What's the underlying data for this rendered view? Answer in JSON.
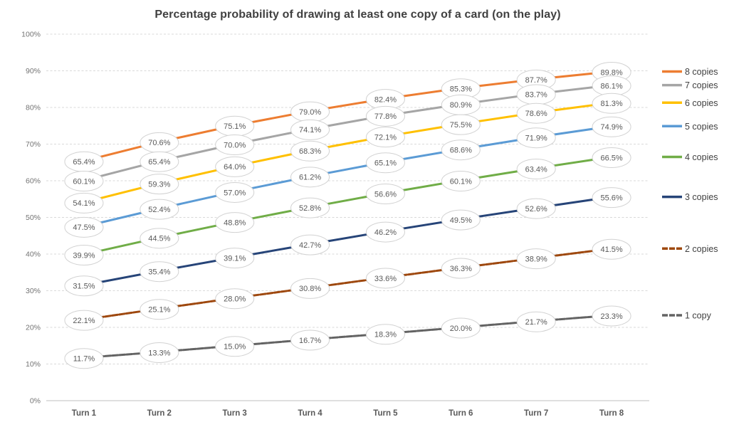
{
  "title": "Percentage probability of drawing at least one copy of a card (on the play)",
  "chart_data": {
    "type": "line",
    "title": "Percentage probability of drawing at least one copy of a card (on the play)",
    "categories": [
      "Turn 1",
      "Turn 2",
      "Turn 3",
      "Turn 4",
      "Turn 5",
      "Turn 6",
      "Turn 7",
      "Turn 8"
    ],
    "series": [
      {
        "name": "8 copies",
        "color": "#ED7D31",
        "line_style": "solid",
        "values": [
          65.4,
          70.6,
          75.1,
          79.0,
          82.4,
          85.3,
          87.7,
          89.8
        ]
      },
      {
        "name": "7 copies",
        "color": "#A5A5A5",
        "line_style": "solid",
        "values": [
          60.1,
          65.4,
          70.0,
          74.1,
          77.8,
          80.9,
          83.7,
          86.1
        ]
      },
      {
        "name": "6 copies",
        "color": "#FFC000",
        "line_style": "solid",
        "values": [
          54.1,
          59.3,
          64.0,
          68.3,
          72.1,
          75.5,
          78.6,
          81.3
        ]
      },
      {
        "name": "5 copies",
        "color": "#5B9BD5",
        "line_style": "solid",
        "values": [
          47.5,
          52.4,
          57.0,
          61.2,
          65.1,
          68.6,
          71.9,
          74.9
        ]
      },
      {
        "name": "4 copies",
        "color": "#70AD47",
        "line_style": "solid",
        "values": [
          39.9,
          44.5,
          48.8,
          52.8,
          56.6,
          60.1,
          63.4,
          66.5
        ]
      },
      {
        "name": "3 copies",
        "color": "#264478",
        "line_style": "solid",
        "values": [
          31.5,
          35.4,
          39.1,
          42.7,
          46.2,
          49.5,
          52.6,
          55.6
        ]
      },
      {
        "name": "2 copies",
        "color": "#9E480E",
        "line_style": "dashed",
        "values": [
          22.1,
          25.1,
          28.0,
          30.8,
          33.6,
          36.3,
          38.9,
          41.5
        ]
      },
      {
        "name": "1 copy",
        "color": "#636363",
        "line_style": "dashed",
        "values": [
          11.7,
          13.3,
          15.0,
          16.7,
          18.3,
          20.0,
          21.7,
          23.3
        ]
      }
    ],
    "ylim": [
      0,
      100
    ],
    "ytick_step": 10,
    "ytick_labels": [
      "0%",
      "10%",
      "20%",
      "30%",
      "40%",
      "50%",
      "60%",
      "70%",
      "80%",
      "90%",
      "100%"
    ],
    "xlabel": "",
    "ylabel": "",
    "grid": true,
    "legend_position": "right",
    "data_labels": "all points, one decimal percent, in white oval callouts"
  },
  "colors": {
    "title_text": "#404040",
    "gridline": "#D9D9D9",
    "axis_line": "#BFBFBF",
    "ytick_text": "#737373",
    "xtick_text": "#595959",
    "label_text": "#595959",
    "label_oval_fill": "#FFFFFF",
    "label_oval_border": "#D2D2D2",
    "legend_text": "#404040"
  }
}
